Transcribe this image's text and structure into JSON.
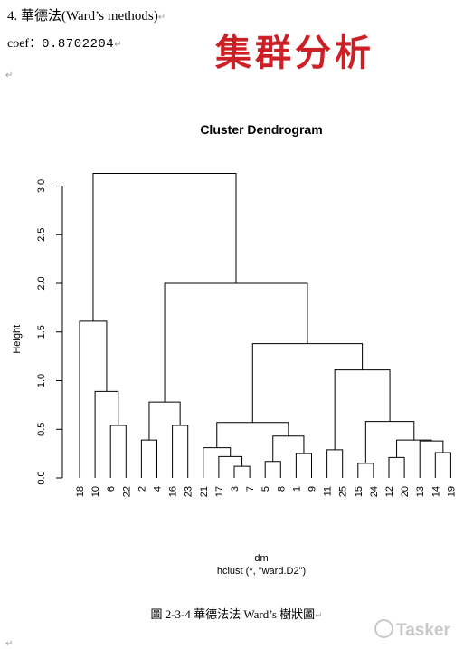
{
  "document": {
    "heading": "4. 華德法(Ward’s methods)",
    "coef_label": "coef：",
    "coef_value": "0.8702204",
    "stamp": "集群分析",
    "caption": "圖 2-3-4 華德法法 Ward’s 樹狀圖",
    "watermark": "Tasker"
  },
  "chart_data": {
    "type": "dendrogram",
    "title": "Cluster Dendrogram",
    "ylabel": "Height",
    "xlabel": "dm",
    "sublabel": "hclust (*, \"ward.D2\")",
    "ylim": [
      0,
      3.1
    ],
    "yticks": [
      "0.0",
      "0.5",
      "1.0",
      "1.5",
      "2.0",
      "2.5",
      "3.0"
    ],
    "leaves": [
      "18",
      "10",
      "6",
      "22",
      "2",
      "4",
      "16",
      "23",
      "21",
      "17",
      "3",
      "7",
      "5",
      "8",
      "1",
      "9",
      "11",
      "25",
      "15",
      "24",
      "12",
      "20",
      "13",
      "14",
      "19"
    ],
    "merges": [
      {
        "id": "a",
        "left": "3",
        "right": "7",
        "height": 0.12
      },
      {
        "id": "b",
        "left": "14",
        "right": "19",
        "height": 0.26
      },
      {
        "id": "c",
        "left": "6",
        "right": "22",
        "height": 0.54
      },
      {
        "id": "d",
        "left": "16",
        "right": "23",
        "height": 0.54
      },
      {
        "id": "e",
        "left": "1",
        "right": "9",
        "height": 0.25
      },
      {
        "id": "f",
        "left": "17",
        "right": "a",
        "height": 0.22
      },
      {
        "id": "g",
        "left": "5",
        "right": "8",
        "height": 0.17
      },
      {
        "id": "h",
        "left": "21",
        "right": "f",
        "height": 0.31
      },
      {
        "id": "i",
        "left": "g",
        "right": "e",
        "height": 0.43
      },
      {
        "id": "j",
        "left": "h",
        "right": "i",
        "height": 0.57
      },
      {
        "id": "k",
        "left": "11",
        "right": "25",
        "height": 0.29
      },
      {
        "id": "l",
        "left": "15",
        "right": "24",
        "height": 0.15
      },
      {
        "id": "m",
        "left": "12",
        "right": "20",
        "height": 0.21
      },
      {
        "id": "n",
        "left": "13",
        "right": "b",
        "height": 0.38
      },
      {
        "id": "o",
        "left": "m",
        "right": "n",
        "height": 0.39
      },
      {
        "id": "p",
        "left": "l",
        "right": "o",
        "height": 0.58
      },
      {
        "id": "q",
        "left": "k",
        "right": "p",
        "height": 1.11
      },
      {
        "id": "r",
        "left": "j",
        "right": "q",
        "height": 1.38
      },
      {
        "id": "s",
        "left": "2",
        "right": "4",
        "height": 0.39
      },
      {
        "id": "t",
        "left": "s",
        "right": "d",
        "height": 0.78
      },
      {
        "id": "u",
        "left": "t",
        "right": "r",
        "height": 2.0
      },
      {
        "id": "v",
        "left": "10",
        "right": "c",
        "height": 0.89
      },
      {
        "id": "w",
        "left": "18",
        "right": "v",
        "height": 1.61
      },
      {
        "id": "x",
        "left": "w",
        "right": "u",
        "height": 3.13
      }
    ]
  }
}
